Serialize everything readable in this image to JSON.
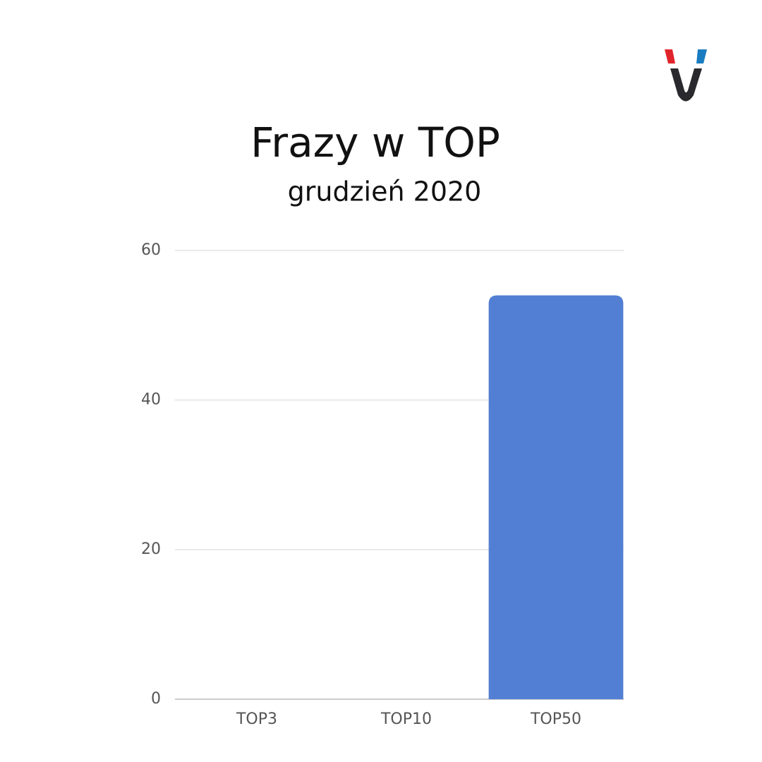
{
  "chart_data": {
    "type": "bar",
    "title": "Frazy w TOP",
    "subtitle": "grudzień 2020",
    "categories": [
      "TOP3",
      "TOP10",
      "TOP50"
    ],
    "values": [
      0,
      0,
      54
    ],
    "color": "#527fd3",
    "ylim": [
      0,
      60
    ],
    "yticks": [
      0,
      20,
      40,
      60
    ],
    "grid": true
  }
}
